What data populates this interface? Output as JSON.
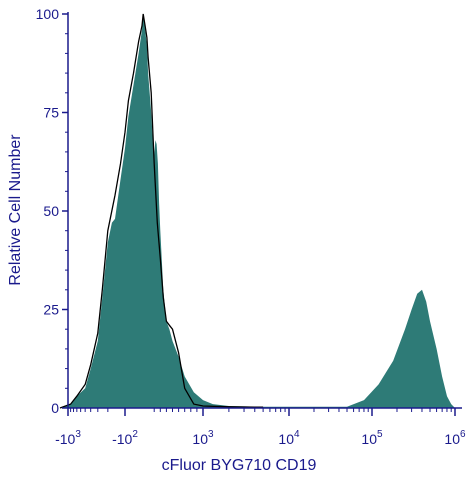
{
  "chart_data": {
    "type": "area",
    "xlabel": "cFluor BYG710 CD19",
    "ylabel": "Relative Cell Number",
    "x_scale": "biexponential",
    "x_ticks": [
      {
        "value": -1000,
        "base": "-10",
        "exp": "3"
      },
      {
        "value": -100,
        "base": "-10",
        "exp": "2"
      },
      {
        "value": 1000,
        "base": "10",
        "exp": "3"
      },
      {
        "value": 10000,
        "base": "10",
        "exp": "4"
      },
      {
        "value": 100000,
        "base": "10",
        "exp": "5"
      },
      {
        "value": 1000000,
        "base": "10",
        "exp": "6"
      }
    ],
    "y_ticks": [
      0,
      25,
      50,
      75,
      100
    ],
    "ylim": [
      0,
      100
    ],
    "grid": false,
    "colors": {
      "fill": "#2e7b77",
      "outline": "#000000",
      "axis": "#1a1a8c"
    },
    "series": [
      {
        "style": "filled",
        "points": [
          [
            -1200,
            0
          ],
          [
            -900,
            1
          ],
          [
            -700,
            3
          ],
          [
            -500,
            5
          ],
          [
            -400,
            10
          ],
          [
            -300,
            17
          ],
          [
            -250,
            28
          ],
          [
            -200,
            42
          ],
          [
            -170,
            47
          ],
          [
            -150,
            48
          ],
          [
            -120,
            58
          ],
          [
            -100,
            66
          ],
          [
            -80,
            74
          ],
          [
            -50,
            82
          ],
          [
            -20,
            90
          ],
          [
            0,
            96
          ],
          [
            20,
            100
          ],
          [
            50,
            96
          ],
          [
            80,
            92
          ],
          [
            100,
            85
          ],
          [
            150,
            75
          ],
          [
            180,
            67
          ],
          [
            200,
            64
          ],
          [
            220,
            68
          ],
          [
            240,
            67
          ],
          [
            260,
            62
          ],
          [
            280,
            52
          ],
          [
            300,
            45
          ],
          [
            350,
            30
          ],
          [
            400,
            22
          ],
          [
            450,
            20
          ],
          [
            500,
            17
          ],
          [
            600,
            13
          ],
          [
            700,
            8
          ],
          [
            850,
            4
          ],
          [
            1000,
            2
          ],
          [
            1300,
            1
          ],
          [
            2000,
            0.5
          ],
          [
            5000,
            0.3
          ],
          [
            20000,
            0.3
          ],
          [
            50000,
            0.3
          ],
          [
            80000,
            2
          ],
          [
            120000,
            6
          ],
          [
            180000,
            12
          ],
          [
            250000,
            20
          ],
          [
            300000,
            25
          ],
          [
            350000,
            29
          ],
          [
            400000,
            30
          ],
          [
            450000,
            27
          ],
          [
            500000,
            22
          ],
          [
            600000,
            15
          ],
          [
            700000,
            8
          ],
          [
            800000,
            3
          ],
          [
            900000,
            1
          ],
          [
            1000000,
            0
          ]
        ]
      },
      {
        "style": "outline",
        "points": [
          [
            -1200,
            0
          ],
          [
            -900,
            1
          ],
          [
            -700,
            3
          ],
          [
            -500,
            6
          ],
          [
            -400,
            11
          ],
          [
            -300,
            19
          ],
          [
            -250,
            30
          ],
          [
            -200,
            45
          ],
          [
            -150,
            54
          ],
          [
            -120,
            62
          ],
          [
            -100,
            70
          ],
          [
            -80,
            78
          ],
          [
            -50,
            85
          ],
          [
            -20,
            93
          ],
          [
            0,
            97
          ],
          [
            20,
            100
          ],
          [
            50,
            97
          ],
          [
            80,
            94
          ],
          [
            100,
            89
          ],
          [
            150,
            80
          ],
          [
            200,
            62
          ],
          [
            250,
            47
          ],
          [
            300,
            38
          ],
          [
            350,
            28
          ],
          [
            400,
            22
          ],
          [
            450,
            21
          ],
          [
            500,
            20
          ],
          [
            600,
            14
          ],
          [
            700,
            5
          ],
          [
            850,
            1
          ],
          [
            1000,
            0.5
          ],
          [
            2000,
            0.3
          ],
          [
            5000,
            0.2
          ]
        ]
      }
    ]
  }
}
